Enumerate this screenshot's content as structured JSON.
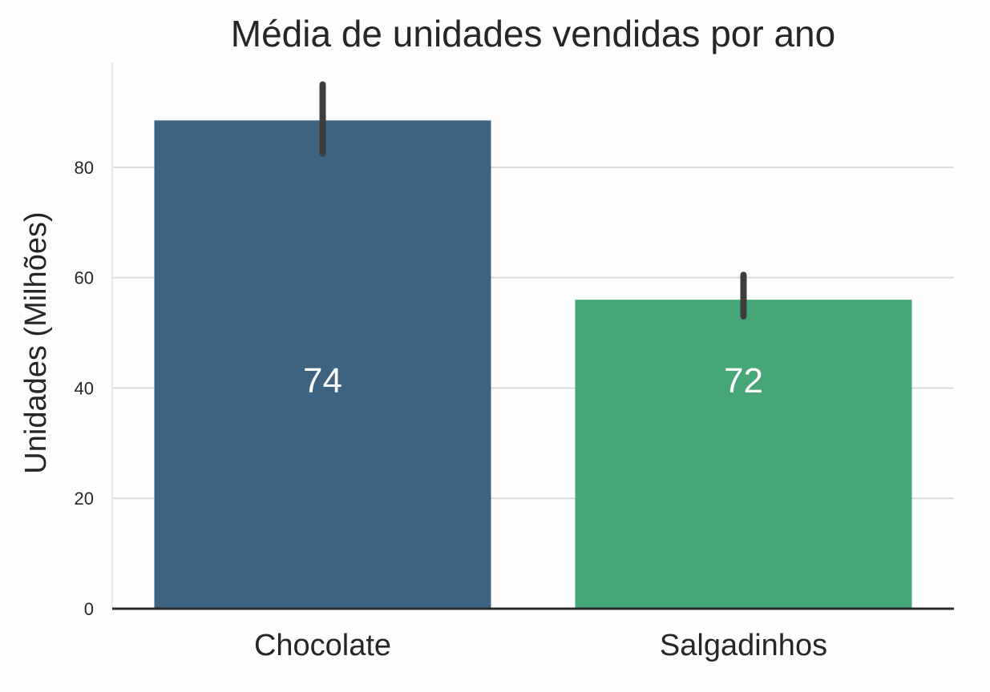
{
  "chart_data": {
    "type": "bar",
    "title": "Média de unidades vendidas por ano",
    "xlabel": "",
    "ylabel": "Unidades (Milhões)",
    "ylim": [
      0,
      99
    ],
    "yticks": [
      0,
      20,
      40,
      60,
      80
    ],
    "grid": "horizontal",
    "categories": [
      "Chocolate",
      "Salgadinhos"
    ],
    "values": [
      88.5,
      56.0
    ],
    "error_bars": [
      {
        "low": 82.5,
        "high": 95.0
      },
      {
        "low": 53.0,
        "high": 60.5
      }
    ],
    "bar_labels": [
      "74",
      "72"
    ],
    "colors": [
      "#3e6381",
      "#47a675"
    ]
  }
}
